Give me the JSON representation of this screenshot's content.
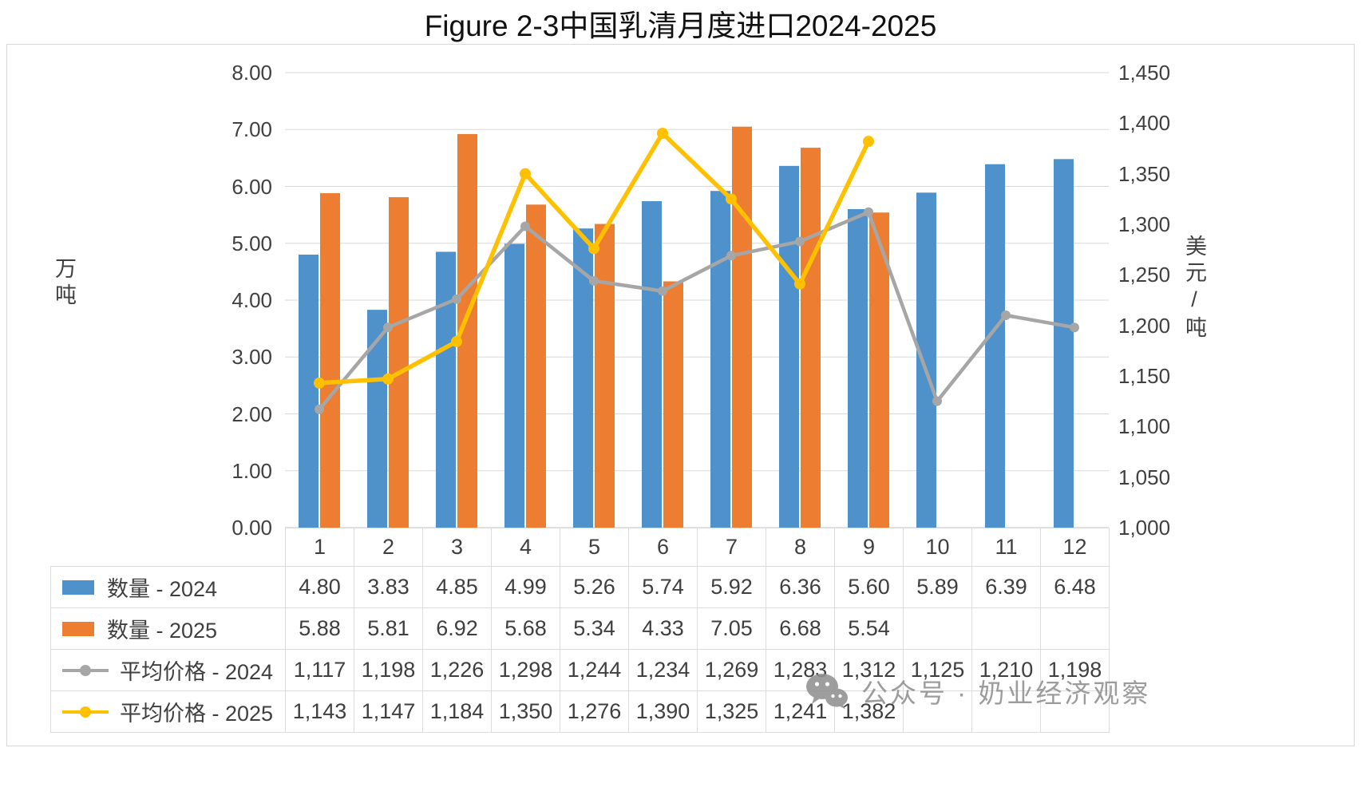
{
  "title": "Figure 2-3中国乳清月度进口2024-2025",
  "watermark": {
    "text": "公众号 · 奶业经济观察"
  },
  "chart_data": {
    "type": "combo-bar-line",
    "title": "Figure 2-3中国乳清月度进口2024-2025",
    "grid": true,
    "legend_position": "table-left",
    "categories": [
      "1",
      "2",
      "3",
      "4",
      "5",
      "6",
      "7",
      "8",
      "9",
      "10",
      "11",
      "12"
    ],
    "left_axis": {
      "title": "万吨",
      "min": 0,
      "max": 8,
      "ticks": [
        {
          "value": 8,
          "label": "8.00"
        },
        {
          "value": 7,
          "label": "7.00"
        },
        {
          "value": 6,
          "label": "6.00"
        },
        {
          "value": 5,
          "label": "5.00"
        },
        {
          "value": 4,
          "label": "4.00"
        },
        {
          "value": 3,
          "label": "3.00"
        },
        {
          "value": 2,
          "label": "2.00"
        },
        {
          "value": 1,
          "label": "1.00"
        },
        {
          "value": 0,
          "label": "0.00"
        }
      ]
    },
    "right_axis": {
      "title": "美元/吨",
      "min": 1000,
      "max": 1450,
      "ticks": [
        {
          "value": 1450,
          "label": "1,450"
        },
        {
          "value": 1400,
          "label": "1,400"
        },
        {
          "value": 1350,
          "label": "1,350"
        },
        {
          "value": 1300,
          "label": "1,300"
        },
        {
          "value": 1250,
          "label": "1,250"
        },
        {
          "value": 1200,
          "label": "1,200"
        },
        {
          "value": 1150,
          "label": "1,150"
        },
        {
          "value": 1100,
          "label": "1,100"
        },
        {
          "value": 1050,
          "label": "1,050"
        },
        {
          "value": 1000,
          "label": "1,000"
        }
      ]
    },
    "series": [
      {
        "name": "数量 - 2024",
        "type": "bar",
        "axis": "left",
        "color": "#4E91CB",
        "values": [
          4.8,
          3.83,
          4.85,
          4.99,
          5.26,
          5.74,
          5.92,
          6.36,
          5.6,
          5.89,
          6.39,
          6.48
        ],
        "display": [
          "4.80",
          "3.83",
          "4.85",
          "4.99",
          "5.26",
          "5.74",
          "5.92",
          "6.36",
          "5.60",
          "5.89",
          "6.39",
          "6.48"
        ]
      },
      {
        "name": "数量 - 2025",
        "type": "bar",
        "axis": "left",
        "color": "#ED7D31",
        "values": [
          5.88,
          5.81,
          6.92,
          5.68,
          5.34,
          4.33,
          7.05,
          6.68,
          5.54,
          null,
          null,
          null
        ],
        "display": [
          "5.88",
          "5.81",
          "6.92",
          "5.68",
          "5.34",
          "4.33",
          "7.05",
          "6.68",
          "5.54",
          "",
          "",
          ""
        ]
      },
      {
        "name": "平均价格 - 2024",
        "type": "line",
        "axis": "right",
        "color": "#A6A6A6",
        "values": [
          1117,
          1198,
          1226,
          1298,
          1244,
          1234,
          1269,
          1283,
          1312,
          1125,
          1210,
          1198
        ],
        "display": [
          "1,117",
          "1,198",
          "1,226",
          "1,298",
          "1,244",
          "1,234",
          "1,269",
          "1,283",
          "1,312",
          "1,125",
          "1,210",
          "1,198"
        ]
      },
      {
        "name": "平均价格 - 2025",
        "type": "line",
        "axis": "right",
        "color": "#FFC000",
        "values": [
          1143,
          1147,
          1184,
          1350,
          1276,
          1390,
          1325,
          1241,
          1382,
          null,
          null,
          null
        ],
        "display": [
          "1,143",
          "1,147",
          "1,184",
          "1,350",
          "1,276",
          "1,390",
          "1,325",
          "1,241",
          "1,382",
          "",
          "",
          ""
        ]
      }
    ]
  }
}
